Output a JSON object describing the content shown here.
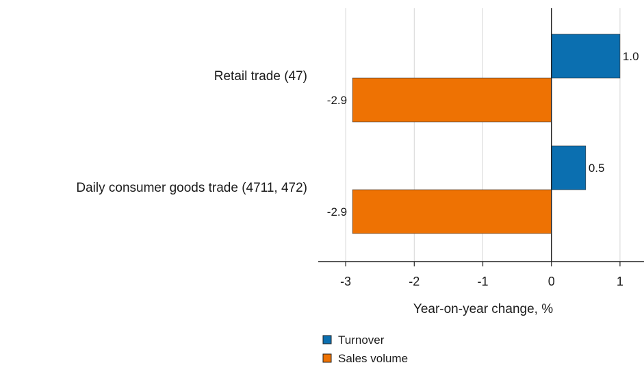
{
  "chart_data": {
    "type": "bar",
    "orientation": "horizontal",
    "categories": [
      "Retail trade (47)",
      "Daily consumer goods trade (4711, 472)"
    ],
    "series": [
      {
        "name": "Turnover",
        "values": [
          1.0,
          0.5
        ],
        "labels": [
          "1.0",
          "0.5"
        ],
        "color": "#0b6fb0"
      },
      {
        "name": "Sales volume",
        "values": [
          -2.9,
          -2.9
        ],
        "labels": [
          "-2.9",
          "-2.9"
        ],
        "color": "#ee7203"
      }
    ],
    "xlabel": "Year-on-year change, %",
    "xlim": [
      -3.4,
      1.35
    ],
    "xticks": [
      -3,
      -2,
      -1,
      0,
      1
    ],
    "xtick_labels": [
      "-3",
      "-2",
      "-1",
      "0",
      "1"
    ],
    "grid": true,
    "legend_position": "bottom"
  }
}
